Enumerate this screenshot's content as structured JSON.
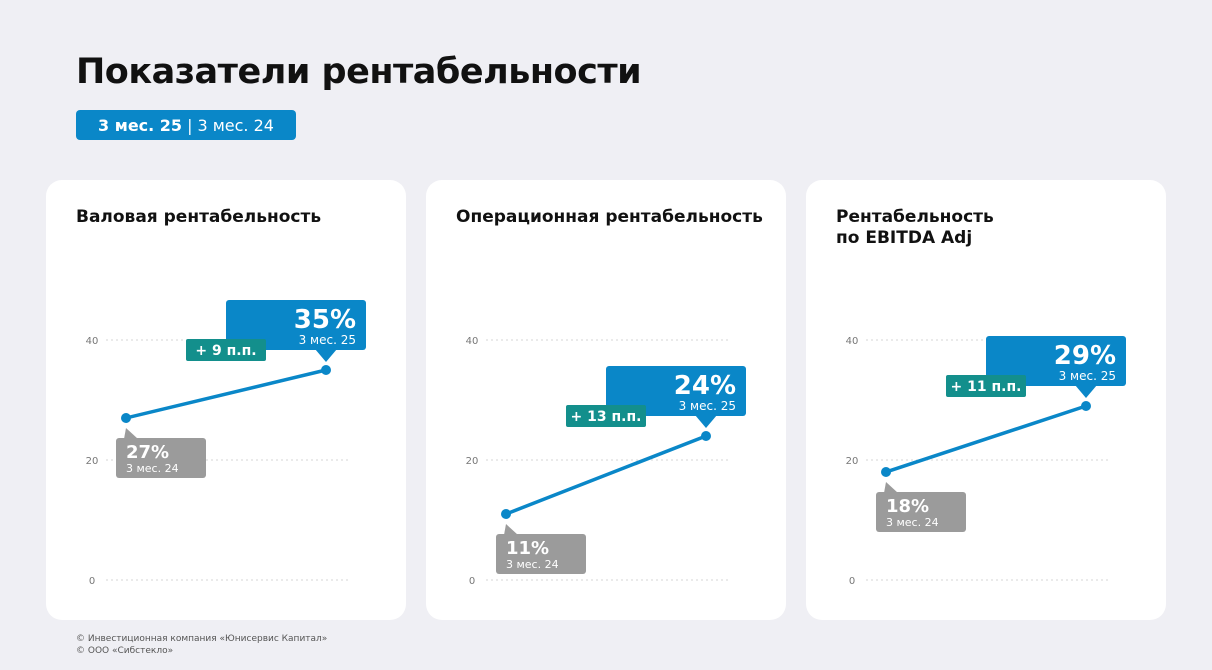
{
  "header": {
    "title": "Показатели рентабельности",
    "period_current": "3 мес. 25",
    "period_separator": "|",
    "period_previous": "3 мес. 24"
  },
  "colors": {
    "accent": "#0a87c8",
    "delta": "#138f8c",
    "previous": "#9b9b9b",
    "grid": "#d5d5d5",
    "card": "#ffffff",
    "background": "#efeff4"
  },
  "chart_data": [
    {
      "type": "line",
      "title": "Валовая рентабельность",
      "ylim": [
        0,
        40
      ],
      "yticks": [
        0,
        20,
        40
      ],
      "grid": true,
      "x": [
        "3 мес. 24",
        "3 мес. 25"
      ],
      "values": [
        27,
        35
      ],
      "labels": [
        "27%",
        "35%"
      ],
      "delta": "+ 9 п.п."
    },
    {
      "type": "line",
      "title": "Операционная рентабельность",
      "ylim": [
        0,
        40
      ],
      "yticks": [
        0,
        20,
        40
      ],
      "grid": true,
      "x": [
        "3 мес. 24",
        "3 мес. 25"
      ],
      "values": [
        11,
        24
      ],
      "labels": [
        "11%",
        "24%"
      ],
      "delta": "+ 13 п.п."
    },
    {
      "type": "line",
      "title": "Рентабельность\nпо EBITDA Adj",
      "ylim": [
        0,
        40
      ],
      "yticks": [
        0,
        20,
        40
      ],
      "grid": true,
      "x": [
        "3 мес. 24",
        "3 мес. 25"
      ],
      "values": [
        18,
        29
      ],
      "labels": [
        "18%",
        "29%"
      ],
      "delta": "+ 11 п.п."
    }
  ],
  "footer": {
    "line1": "© Инвестиционная компания «Юнисервис Капитал»",
    "line2": "© ООО «Сибстекло»"
  }
}
